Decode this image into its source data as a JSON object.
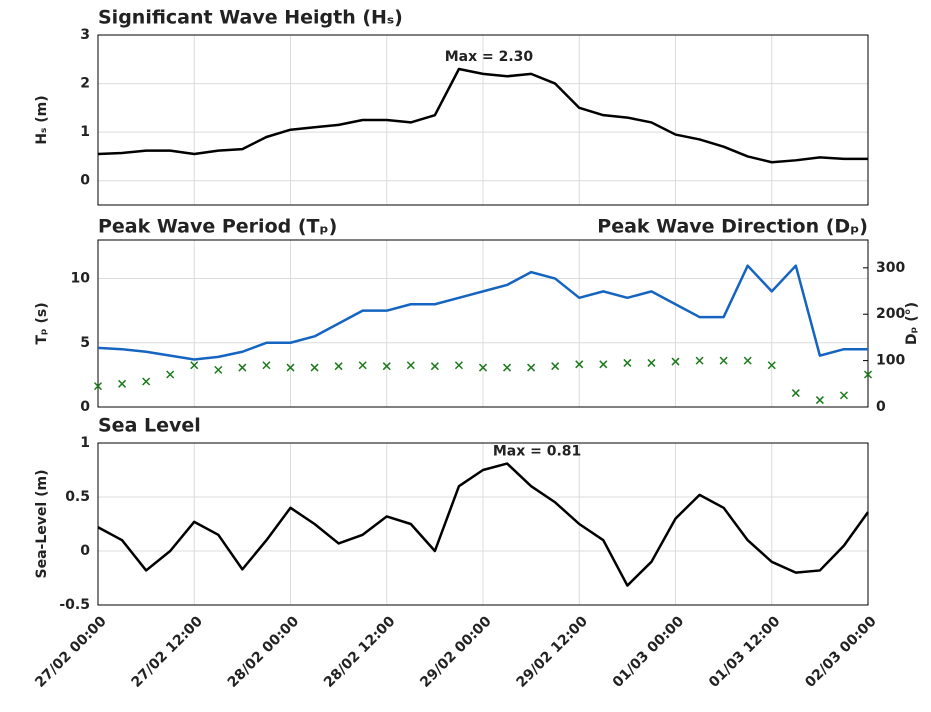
{
  "chart_data": [
    {
      "type": "line",
      "title": "Significant Wave Heigth (Hₛ)",
      "ylabel": "Hₛ (m)",
      "annotation": "Max = 2.30",
      "x": [
        "27/02 00:00",
        "27/02 03:00",
        "27/02 06:00",
        "27/02 09:00",
        "27/02 12:00",
        "27/02 15:00",
        "27/02 18:00",
        "27/02 21:00",
        "28/02 00:00",
        "28/02 03:00",
        "28/02 06:00",
        "28/02 09:00",
        "28/02 12:00",
        "28/02 15:00",
        "28/02 18:00",
        "28/02 21:00",
        "29/02 00:00",
        "29/02 03:00",
        "29/02 06:00",
        "29/02 09:00",
        "29/02 12:00",
        "29/02 15:00",
        "29/02 18:00",
        "29/02 21:00",
        "01/03 00:00",
        "01/03 03:00",
        "01/03 06:00",
        "01/03 09:00",
        "01/03 12:00",
        "01/03 15:00",
        "01/03 18:00",
        "01/03 21:00",
        "02/03 00:00"
      ],
      "series": [
        {
          "color": "#000000",
          "values": [
            0.55,
            0.57,
            0.62,
            0.62,
            0.55,
            0.62,
            0.65,
            0.9,
            1.05,
            1.1,
            1.15,
            1.25,
            1.25,
            1.2,
            1.35,
            2.3,
            2.2,
            2.15,
            2.2,
            2.0,
            1.5,
            1.35,
            1.3,
            1.2,
            0.95,
            0.85,
            0.7,
            0.5,
            0.38,
            0.42,
            0.48,
            0.45,
            0.45
          ]
        }
      ],
      "xlim": [
        "27/02 00:00",
        "02/03 00:00"
      ],
      "xticks": [
        "27/02 00:00",
        "27/02 12:00",
        "28/02 00:00",
        "28/02 12:00",
        "29/02 00:00",
        "29/02 12:00",
        "01/03 00:00",
        "01/03 12:00",
        "02/03 00:00"
      ],
      "ylim": [
        -0.5,
        3
      ],
      "yticks": [
        0,
        1,
        2,
        3
      ],
      "grid": true,
      "xtick_labels": false
    },
    {
      "type": "line",
      "ylabel": "Tₚ (s)",
      "y2label": "Dₚ (°)",
      "x": [
        "27/02 00:00",
        "27/02 03:00",
        "27/02 06:00",
        "27/02 09:00",
        "27/02 12:00",
        "27/02 15:00",
        "27/02 18:00",
        "27/02 21:00",
        "28/02 00:00",
        "28/02 03:00",
        "28/02 06:00",
        "28/02 09:00",
        "28/02 12:00",
        "28/02 15:00",
        "28/02 18:00",
        "28/02 21:00",
        "29/02 00:00",
        "29/02 03:00",
        "29/02 06:00",
        "29/02 09:00",
        "29/02 12:00",
        "29/02 15:00",
        "29/02 18:00",
        "29/02 21:00",
        "01/03 00:00",
        "01/03 03:00",
        "01/03 06:00",
        "01/03 09:00",
        "01/03 12:00",
        "01/03 15:00",
        "01/03 18:00",
        "01/03 21:00",
        "02/03 00:00"
      ],
      "series": [
        {
          "name": "Peak Wave Period (Tₚ)",
          "type": "line",
          "color": "#1565c0",
          "values": [
            4.6,
            4.5,
            4.3,
            4.0,
            3.7,
            3.9,
            4.3,
            5.0,
            5.0,
            5.5,
            6.5,
            7.5,
            7.5,
            8.0,
            8.0,
            8.5,
            9.0,
            9.5,
            10.5,
            10.0,
            8.5,
            9.0,
            8.5,
            9.0,
            8.0,
            7.0,
            7.0,
            11.0,
            9.0,
            11.0,
            4.0,
            4.5,
            4.5
          ]
        },
        {
          "name": "Peak Wave Direction (Dₚ)",
          "type": "scatter",
          "axis": "y2",
          "color": "#1b7a1b",
          "values": [
            45,
            50,
            55,
            70,
            90,
            80,
            85,
            90,
            85,
            85,
            88,
            90,
            88,
            90,
            88,
            90,
            85,
            85,
            85,
            88,
            92,
            92,
            95,
            95,
            98,
            100,
            100,
            100,
            90,
            30,
            15,
            25,
            70
          ]
        }
      ],
      "xlim": [
        "27/02 00:00",
        "02/03 00:00"
      ],
      "xticks": [
        "27/02 00:00",
        "27/02 12:00",
        "28/02 00:00",
        "28/02 12:00",
        "29/02 00:00",
        "29/02 12:00",
        "01/03 00:00",
        "01/03 12:00",
        "02/03 00:00"
      ],
      "ylim": [
        0,
        13
      ],
      "yticks": [
        0,
        5,
        10
      ],
      "y2lim": [
        0,
        360
      ],
      "y2ticks": [
        0,
        100,
        200,
        300
      ],
      "grid": true,
      "xtick_labels": false
    },
    {
      "type": "line",
      "title": "Sea Level",
      "ylabel": "Sea-Level (m)",
      "annotation": "Max = 0.81",
      "x": [
        "27/02 00:00",
        "27/02 03:00",
        "27/02 06:00",
        "27/02 09:00",
        "27/02 12:00",
        "27/02 15:00",
        "27/02 18:00",
        "27/02 21:00",
        "28/02 00:00",
        "28/02 03:00",
        "28/02 06:00",
        "28/02 09:00",
        "28/02 12:00",
        "28/02 15:00",
        "28/02 18:00",
        "28/02 21:00",
        "29/02 00:00",
        "29/02 03:00",
        "29/02 06:00",
        "29/02 09:00",
        "29/02 12:00",
        "29/02 15:00",
        "29/02 18:00",
        "29/02 21:00",
        "01/03 00:00",
        "01/03 03:00",
        "01/03 06:00",
        "01/03 09:00",
        "01/03 12:00",
        "01/03 15:00",
        "01/03 18:00",
        "01/03 21:00",
        "02/03 00:00"
      ],
      "series": [
        {
          "color": "#000000",
          "values": [
            0.22,
            0.1,
            -0.18,
            0.0,
            0.27,
            0.15,
            -0.17,
            0.1,
            0.4,
            0.25,
            0.07,
            0.15,
            0.32,
            0.25,
            0.0,
            0.6,
            0.75,
            0.81,
            0.6,
            0.45,
            0.25,
            0.1,
            -0.32,
            -0.1,
            0.3,
            0.52,
            0.4,
            0.1,
            -0.1,
            -0.2,
            -0.18,
            0.05,
            0.36
          ]
        }
      ],
      "xlim": [
        "27/02 00:00",
        "02/03 00:00"
      ],
      "xticks": [
        "27/02 00:00",
        "27/02 12:00",
        "28/02 00:00",
        "28/02 12:00",
        "29/02 00:00",
        "29/02 12:00",
        "01/03 00:00",
        "01/03 12:00",
        "02/03 00:00"
      ],
      "ylim": [
        -0.5,
        1
      ],
      "yticks": [
        -0.5,
        0,
        0.5,
        1
      ],
      "grid": true,
      "xtick_labels": true
    }
  ]
}
